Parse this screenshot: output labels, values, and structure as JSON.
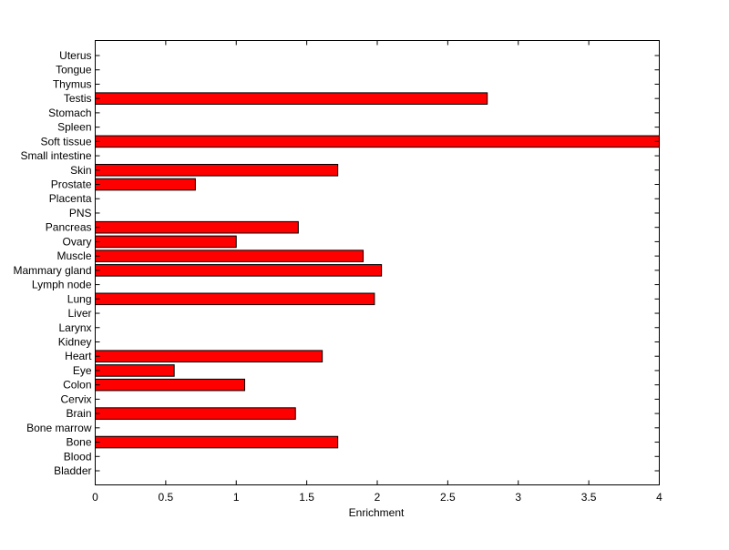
{
  "chart_data": {
    "type": "bar",
    "orientation": "horizontal",
    "title": "",
    "xlabel": "Enrichment",
    "ylabel": "",
    "xlim": [
      0,
      4
    ],
    "xticks": [
      0,
      0.5,
      1,
      1.5,
      2,
      2.5,
      3,
      3.5,
      4
    ],
    "grid": false,
    "legend": "none",
    "bar_color": "#ff0000",
    "edge_color": "#000000",
    "categories": [
      "Bladder",
      "Blood",
      "Bone",
      "Bone marrow",
      "Brain",
      "Cervix",
      "Colon",
      "Eye",
      "Heart",
      "Kidney",
      "Larynx",
      "Liver",
      "Lung",
      "Lymph node",
      "Mammary gland",
      "Muscle",
      "Ovary",
      "Pancreas",
      "PNS",
      "Placenta",
      "Prostate",
      "Skin",
      "Small intestine",
      "Soft tissue",
      "Spleen",
      "Stomach",
      "Testis",
      "Thymus",
      "Tongue",
      "Uterus"
    ],
    "values": [
      0,
      0,
      1.72,
      0,
      1.42,
      0,
      1.06,
      0.56,
      1.61,
      0,
      0,
      0,
      1.98,
      0,
      2.03,
      1.9,
      1.0,
      1.44,
      0,
      0,
      0.71,
      1.72,
      0,
      4.0,
      0,
      0,
      2.78,
      0,
      0,
      0
    ]
  }
}
